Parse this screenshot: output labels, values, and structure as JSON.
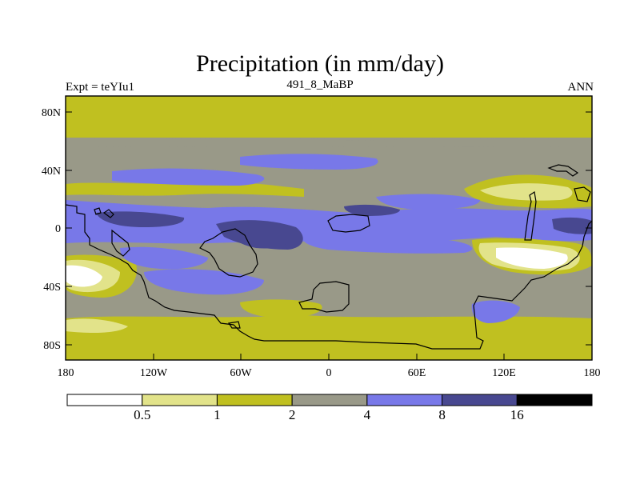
{
  "title": "Precipitation (in mm/day)",
  "subtitle_left": "Expt = teYIu1",
  "subtitle_center": "491_8_MaBP",
  "subtitle_right": "ANN",
  "lat_ticks": [
    "80N",
    "40N",
    "0",
    "40S",
    "80S"
  ],
  "lon_ticks": [
    "180",
    "120W",
    "60W",
    "0",
    "60E",
    "120E",
    "180"
  ],
  "colorbar": {
    "colors": [
      "#ffffff",
      "#e2e38a",
      "#c0c020",
      "#999988",
      "#7878e8",
      "#484890",
      "#000000"
    ],
    "labels": [
      "0.5",
      "1",
      "2",
      "4",
      "8",
      "16"
    ]
  },
  "palette": {
    "below_0_5": "#ffffff",
    "c_0_5_1": "#e2e38a",
    "c_1_2": "#c0c020",
    "c_2_4": "#999988",
    "c_4_8": "#7878e8",
    "c_8_16": "#484890"
  }
}
